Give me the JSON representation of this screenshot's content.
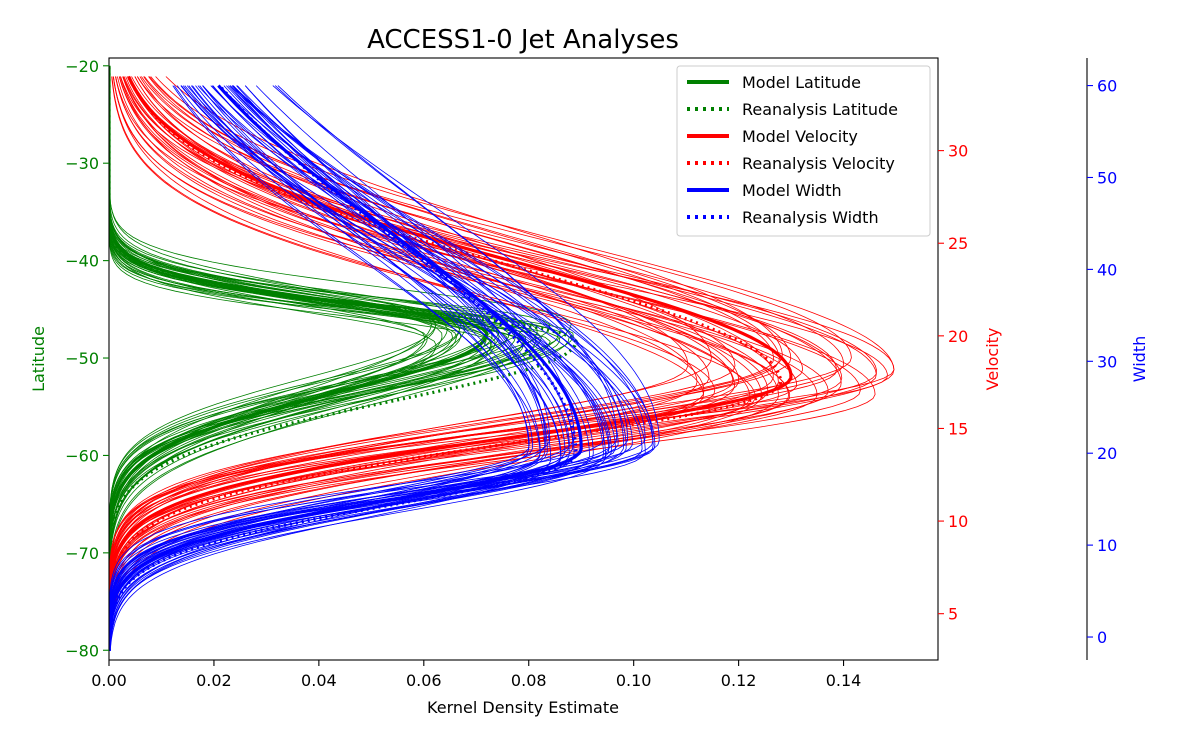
{
  "chart_data": {
    "type": "line",
    "title": "ACCESS1-0 Jet Analyses",
    "xlabel": "Kernel Density Estimate",
    "xlim": [
      0.0,
      0.158
    ],
    "x_ticks": [
      "0.00",
      "0.02",
      "0.04",
      "0.06",
      "0.08",
      "0.10",
      "0.12",
      "0.14"
    ],
    "x_tick_values": [
      0.0,
      0.02,
      0.04,
      0.06,
      0.08,
      0.1,
      0.12,
      0.14
    ],
    "axes": [
      {
        "id": "latitude",
        "label": "Latitude",
        "color": "#008000",
        "side": "left",
        "ylim": [
          -81,
          -19.2
        ],
        "ticks": [
          "−20",
          "−30",
          "−40",
          "−50",
          "−60",
          "−70",
          "−80"
        ],
        "tick_values": [
          -20,
          -30,
          -40,
          -50,
          -60,
          -70,
          -80
        ]
      },
      {
        "id": "velocity",
        "label": "Velocity",
        "color": "#ff0000",
        "side": "right",
        "ylim": [
          2.5,
          35
        ],
        "ticks": [
          "5",
          "10",
          "15",
          "20",
          "25",
          "30"
        ],
        "tick_values": [
          5,
          10,
          15,
          20,
          25,
          30
        ]
      },
      {
        "id": "width",
        "label": "Width",
        "color": "#0000ff",
        "side": "right-offset",
        "ylim": [
          -2.5,
          63
        ],
        "ticks": [
          "0",
          "10",
          "20",
          "30",
          "40",
          "50",
          "60"
        ],
        "tick_values": [
          0,
          10,
          20,
          30,
          40,
          50,
          60
        ]
      }
    ],
    "series": [
      {
        "name": "Model Latitude",
        "axis": "latitude",
        "color": "#008000",
        "style": "solid",
        "peak_y": -47.5,
        "peak_x": 0.072,
        "peak_x_range": [
          0.06,
          0.089
        ],
        "ensemble_members": 40
      },
      {
        "name": "Reanalysis Latitude",
        "axis": "latitude",
        "color": "#008000",
        "style": "dotted",
        "peak_y": -48.3,
        "peak_x": 0.089
      },
      {
        "name": "Model Velocity",
        "axis": "velocity",
        "color": "#ff0000",
        "style": "solid",
        "peak_y": 17.8,
        "peak_x": 0.13,
        "peak_x_range": [
          0.11,
          0.15
        ],
        "ensemble_members": 40
      },
      {
        "name": "Reanalysis Velocity",
        "axis": "velocity",
        "color": "#ff0000",
        "style": "dotted",
        "peak_y": 17.5,
        "peak_x": 0.128
      },
      {
        "name": "Model Width",
        "axis": "width",
        "color": "#0000ff",
        "style": "solid",
        "peak_y": 20.5,
        "peak_x": 0.09,
        "peak_x_range": [
          0.08,
          0.105
        ],
        "ensemble_members": 40
      },
      {
        "name": "Reanalysis Width",
        "axis": "width",
        "color": "#0000ff",
        "style": "dotted",
        "peak_y": 20.0,
        "peak_x": 0.089
      }
    ],
    "legend": {
      "position": "top-right"
    },
    "grid": false
  }
}
